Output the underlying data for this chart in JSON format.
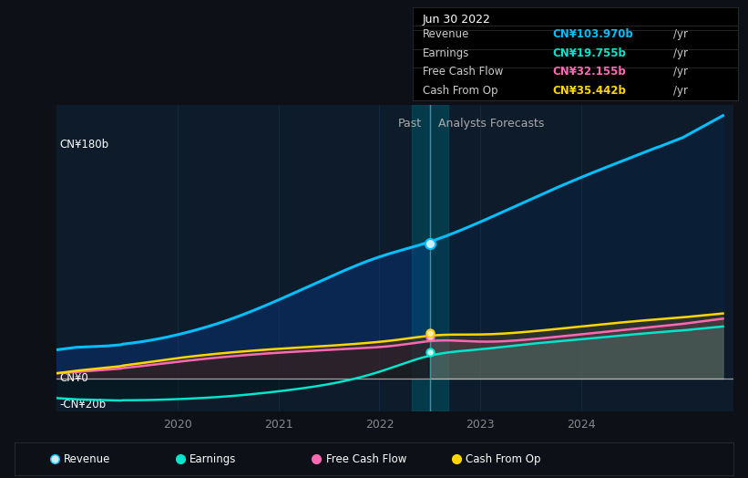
{
  "bg_color": "#0d1117",
  "plot_bg_color": "#0d1b2a",
  "grid_color": "#1e3a5a",
  "title_date": "Jun 30 2022",
  "tooltip_revenue_val": "CN¥103.970b",
  "tooltip_earnings_val": "CN¥19.755b",
  "tooltip_fcf_val": "CN¥32.155b",
  "tooltip_cashop_val": "CN¥35.442b",
  "tooltip_revenue_color": "#00bfff",
  "tooltip_earnings_color": "#00e5cc",
  "tooltip_fcf_color": "#ff69b4",
  "tooltip_cashop_color": "#ffd700",
  "ylabel_top": "CN¥180b",
  "ylabel_zero": "CN¥0",
  "ylabel_neg": "-CN¥20b",
  "past_label": "Past",
  "forecast_label": "Analysts Forecasts",
  "divider_x": 2022.5,
  "revenue_color": "#00bfff",
  "earnings_color": "#00e5cc",
  "fcf_color": "#ff69b4",
  "cashop_color": "#ffd700",
  "legend_items": [
    "Revenue",
    "Earnings",
    "Free Cash Flow",
    "Cash From Op"
  ],
  "legend_colors": [
    "#00bfff",
    "#00e5cc",
    "#ff69b4",
    "#ffd700"
  ],
  "ylim": [
    -25,
    210
  ],
  "xlim": [
    2018.8,
    2025.5
  ]
}
